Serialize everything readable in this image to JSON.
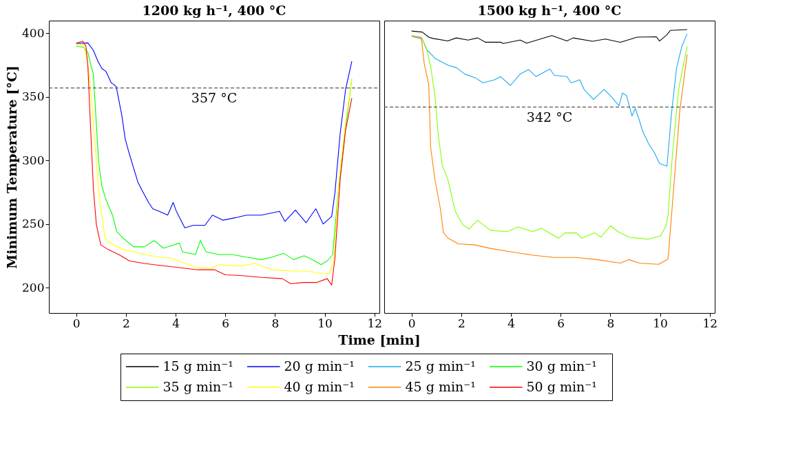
{
  "chart_data": [
    {
      "type": "line",
      "title": "1200 kg h⁻¹, 400 °C",
      "xlabel": "Time [min]",
      "ylabel": "Minimum Temperature [°C]",
      "xlim": [
        -1.1,
        12.2
      ],
      "ylim": [
        180,
        410
      ],
      "xticks": [
        0,
        2,
        4,
        6,
        8,
        10,
        12
      ],
      "yticks": [
        200,
        250,
        300,
        350,
        400
      ],
      "grid": false,
      "legend": "bottom",
      "line_style": "solid",
      "marker": "none",
      "ref_lines": [
        {
          "axis": "y",
          "value": 357,
          "label": "357 °C",
          "color": "#555555",
          "line_style": "dashed"
        }
      ],
      "series": [
        {
          "name": "20 g min⁻¹",
          "color": "#0000ff",
          "x": [
            0,
            0.47,
            0.69,
            0.86,
            1.03,
            1.2,
            1.41,
            1.5,
            1.61,
            1.71,
            1.84,
            1.97,
            2.14,
            2.31,
            2.48,
            2.66,
            2.91,
            3.08,
            3.34,
            3.68,
            3.9,
            4.03,
            4.37,
            4.71,
            5.18,
            5.48,
            5.9,
            6.42,
            6.85,
            7.45,
            8.18,
            8.4,
            8.82,
            9.25,
            9.64,
            9.94,
            10.28,
            10.41,
            10.62,
            10.84,
            11.09
          ],
          "values": [
            392,
            392.5,
            386.6,
            378.6,
            372.4,
            370,
            361,
            360,
            358,
            348,
            335,
            317,
            305,
            294,
            283,
            276,
            267,
            262,
            260,
            257,
            267,
            260,
            247,
            249,
            249,
            257,
            253,
            255,
            257,
            257,
            260,
            252,
            261,
            251,
            262,
            250,
            256,
            274.5,
            321,
            356,
            378
          ]
        },
        {
          "name": "30 g min⁻¹",
          "color": "#00ff00",
          "x": [
            0,
            0.3,
            0.47,
            0.6,
            0.69,
            0.77,
            0.9,
            1.03,
            1.2,
            1.46,
            1.63,
            1.88,
            2.31,
            2.74,
            3.13,
            3.51,
            4.15,
            4.28,
            4.8,
            4.99,
            5.23,
            5.74,
            6.25,
            6.85,
            7.45,
            7.88,
            8.35,
            8.74,
            9.17,
            9.6,
            9.85,
            10.1,
            10.32,
            10.54,
            10.84,
            11.09
          ],
          "values": [
            390,
            389,
            385,
            374,
            368,
            342,
            299,
            280,
            269,
            257,
            244,
            239,
            232,
            232,
            237,
            231,
            235,
            228,
            226,
            237,
            228,
            226,
            226,
            224,
            222,
            224,
            227,
            222,
            225,
            221,
            218,
            221,
            226,
            274.5,
            326,
            364
          ]
        },
        {
          "name": "40 g min⁻¹",
          "color": "#ffff00",
          "x": [
            0,
            0.3,
            0.47,
            0.6,
            0.69,
            0.81,
            0.94,
            1.16,
            1.46,
            1.88,
            2.31,
            2.74,
            3.34,
            3.85,
            4.37,
            4.8,
            5.4,
            5.74,
            6.6,
            7.2,
            7.88,
            8.74,
            9.33,
            9.85,
            10.19,
            10.36,
            10.58,
            10.84,
            11.09
          ],
          "values": [
            391.5,
            391,
            376,
            351,
            328,
            299,
            269,
            239,
            234,
            230,
            228,
            226,
            224,
            223,
            219,
            216,
            215,
            218,
            217,
            219,
            214,
            213,
            213,
            211,
            211,
            221,
            285,
            330,
            364
          ]
        },
        {
          "name": "50 g min⁻¹",
          "color": "#ff0000",
          "x": [
            0,
            0.26,
            0.39,
            0.47,
            0.56,
            0.69,
            0.81,
            0.99,
            1.28,
            1.71,
            2.14,
            2.74,
            3.34,
            4.03,
            4.88,
            5.57,
            6,
            6.6,
            7.45,
            8.3,
            8.63,
            9.14,
            9.66,
            10.1,
            10.28,
            10.41,
            10.62,
            10.84,
            11.09
          ],
          "values": [
            392.3,
            393.8,
            390,
            374,
            333,
            278,
            249.5,
            233.5,
            230,
            226,
            221,
            219,
            217.5,
            216,
            214,
            214,
            210,
            209.5,
            208,
            207,
            203,
            204,
            204,
            207,
            202,
            223,
            285,
            324,
            349
          ]
        }
      ]
    },
    {
      "type": "line",
      "title": "1500 kg h⁻¹, 400 °C",
      "xlim": [
        -1.1,
        12.2
      ],
      "ylim": [
        180,
        410
      ],
      "xticks": [
        0,
        2,
        4,
        6,
        8,
        10,
        12
      ],
      "yticks": [
        200,
        250,
        300,
        350,
        400
      ],
      "grid": false,
      "legend": "bottom",
      "tick_labels": "x",
      "line_style": "solid",
      "marker": "none",
      "ref_lines": [
        {
          "axis": "y",
          "value": 342,
          "label": "342 °C",
          "color": "#555555",
          "line_style": "dashed"
        }
      ],
      "series": [
        {
          "name": "15 g min⁻¹",
          "color": "#000000",
          "x": [
            0,
            0.43,
            0.69,
            0.86,
            1.46,
            1.8,
            2.27,
            2.66,
            2.98,
            3.6,
            3.68,
            4.37,
            4.63,
            5.48,
            5.65,
            6.25,
            6.5,
            7.28,
            7.8,
            8.4,
            9.08,
            9.85,
            9.98,
            10.28,
            10.41,
            11.09
          ],
          "values": [
            401.8,
            401,
            397,
            396,
            394,
            396.4,
            394.7,
            396.4,
            393,
            393,
            392,
            394.7,
            392.3,
            397.3,
            398.2,
            394,
            396.4,
            393.8,
            395.5,
            393,
            397,
            397.3,
            394,
            399,
            402.3,
            403
          ]
        },
        {
          "name": "25 g min⁻¹",
          "color": "#1aa9f0",
          "x": [
            0,
            0.43,
            0.6,
            0.94,
            1.46,
            1.8,
            2.14,
            2.57,
            2.87,
            3.34,
            3.58,
            3.98,
            4.37,
            4.71,
            5.01,
            5.57,
            5.74,
            6.25,
            6.42,
            6.77,
            6.94,
            7.32,
            7.75,
            8.09,
            8.35,
            8.48,
            8.65,
            8.87,
            9,
            9.17,
            9.29,
            9.55,
            9.76,
            9.98,
            10.28,
            10.45,
            10.66,
            10.88,
            11.09
          ],
          "values": [
            397.7,
            395.5,
            387.5,
            380.4,
            375,
            373,
            368,
            365,
            361,
            363.5,
            366,
            359,
            368,
            371.5,
            366,
            372,
            367,
            366,
            361,
            363.5,
            356,
            348,
            356,
            349,
            343,
            353,
            351,
            335,
            341,
            331.4,
            323.4,
            312.7,
            306.5,
            297.6,
            295.5,
            335,
            372.4,
            390,
            399.5
          ]
        },
        {
          "name": "35 g min⁻¹",
          "color": "#80ff00",
          "x": [
            0,
            0.39,
            0.6,
            0.77,
            0.94,
            1.07,
            1.24,
            1.46,
            1.76,
            2.06,
            2.31,
            2.66,
            3.17,
            3.85,
            4.28,
            4.88,
            5.22,
            5.91,
            6.17,
            6.64,
            6.85,
            7.37,
            7.62,
            8.01,
            8.31,
            8.74,
            9.17,
            9.51,
            10.02,
            10.24,
            10.32,
            10.49,
            10.75,
            11.09
          ],
          "values": [
            397.7,
            396.8,
            388.4,
            374,
            351,
            320.7,
            295.8,
            285,
            260,
            249.5,
            246,
            253,
            245,
            244,
            247.6,
            244,
            246.7,
            238.8,
            243,
            243,
            238.8,
            243,
            239.7,
            248.6,
            244,
            239.7,
            238.8,
            238,
            240.6,
            248.6,
            256.6,
            303,
            356.4,
            389.8
          ]
        },
        {
          "name": "45 g min⁻¹",
          "color": "#ff8000",
          "x": [
            0,
            0.39,
            0.51,
            0.69,
            0.77,
            0.94,
            1.16,
            1.28,
            1.46,
            1.88,
            2.57,
            3.17,
            4.03,
            4.88,
            5.74,
            6.6,
            7.45,
            8.4,
            8.74,
            9.17,
            9.94,
            10.32,
            10.54,
            10.79,
            11.09
          ],
          "values": [
            398.2,
            396.8,
            376,
            360,
            310,
            285,
            262,
            243.3,
            239,
            234.4,
            233.5,
            230.8,
            228,
            225.5,
            223.7,
            223.7,
            222,
            219.2,
            222,
            219.2,
            218.3,
            222.4,
            276.2,
            338.6,
            383.4
          ]
        }
      ]
    }
  ]
}
